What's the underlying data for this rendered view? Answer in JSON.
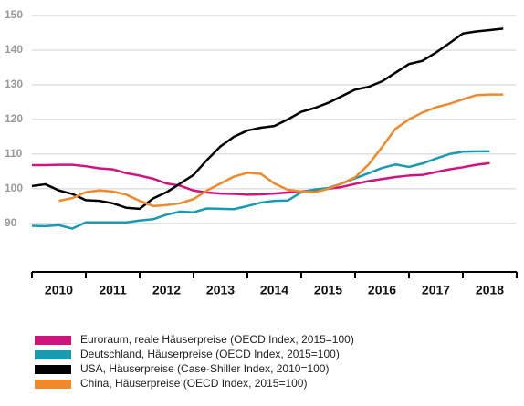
{
  "chart_data": {
    "type": "line",
    "x": [
      2010,
      2010.25,
      2010.5,
      2010.75,
      2011,
      2011.25,
      2011.5,
      2011.75,
      2012,
      2012.25,
      2012.5,
      2012.75,
      2013,
      2013.25,
      2013.5,
      2013.75,
      2014,
      2014.25,
      2014.5,
      2014.75,
      2015,
      2015.25,
      2015.5,
      2015.75,
      2016,
      2016.25,
      2016.5,
      2016.75,
      2017,
      2017.25,
      2017.5,
      2017.75,
      2018,
      2018.25,
      2018.5,
      2018.75
    ],
    "series": [
      {
        "name": "Euroraum, reale Häuserpreise (OECD Index, 2015=100)",
        "color": "#d0147e",
        "values": [
          106.8,
          106.8,
          106.9,
          106.9,
          106.5,
          105.9,
          105.6,
          104.5,
          103.8,
          102.9,
          101.5,
          100.9,
          99.5,
          98.9,
          98.6,
          98.5,
          98.3,
          98.4,
          98.6,
          98.9,
          99.2,
          99.6,
          100.0,
          100.5,
          101.4,
          102.2,
          102.8,
          103.4,
          103.8,
          104.0,
          104.8,
          105.6,
          106.2,
          106.9,
          107.4,
          null
        ]
      },
      {
        "name": "Deutschland, Häuserpreise (OECD Index, 2015=100)",
        "color": "#1a9ab0",
        "values": [
          89.3,
          89.2,
          89.5,
          88.5,
          90.3,
          90.3,
          90.3,
          90.3,
          90.8,
          91.2,
          92.5,
          93.4,
          93.2,
          94.3,
          94.2,
          94.1,
          95.0,
          96.0,
          96.5,
          96.6,
          99.0,
          99.8,
          100.2,
          101.5,
          103.0,
          104.5,
          106.0,
          107.0,
          106.3,
          107.3,
          108.7,
          110.0,
          110.7,
          110.8,
          110.8,
          null
        ]
      },
      {
        "name": "USA, Häuserpreise (Case-Shiller Index, 2010=100)",
        "color": "#000000",
        "values": [
          100.8,
          101.3,
          99.5,
          98.5,
          96.7,
          96.5,
          95.8,
          94.5,
          94.2,
          97.2,
          99.0,
          101.5,
          104.0,
          108.3,
          112.2,
          115.0,
          116.8,
          117.6,
          118.1,
          120.0,
          122.2,
          123.3,
          124.8,
          126.7,
          128.6,
          129.4,
          131.0,
          133.5,
          136.0,
          136.9,
          139.3,
          142.0,
          144.8,
          145.4,
          145.8,
          146.2
        ]
      },
      {
        "name": "China, Häuserpreise (OECD Index, 2015=100)",
        "color": "#ee8a2a",
        "values": [
          null,
          null,
          96.5,
          97.3,
          99.0,
          99.5,
          99.2,
          98.3,
          96.5,
          95.0,
          95.3,
          95.8,
          97.0,
          99.5,
          101.5,
          103.5,
          104.6,
          104.3,
          101.5,
          99.7,
          99.2,
          99.0,
          100.0,
          101.5,
          103.3,
          107.0,
          112.0,
          117.3,
          120.0,
          122.0,
          123.5,
          124.5,
          125.8,
          127.0,
          127.2,
          127.2
        ]
      }
    ],
    "xlim": [
      2010,
      2019
    ],
    "xticks": [
      2010,
      2011,
      2012,
      2013,
      2014,
      2015,
      2016,
      2017,
      2018,
      2019
    ],
    "categories": [
      "2010",
      "2011",
      "2012",
      "2013",
      "2014",
      "2015",
      "2016",
      "2017",
      "2018"
    ],
    "ylim": [
      76,
      150
    ],
    "yticks": [
      90,
      100,
      110,
      120,
      130,
      140,
      150
    ],
    "grid": true,
    "legend": "bottom"
  }
}
